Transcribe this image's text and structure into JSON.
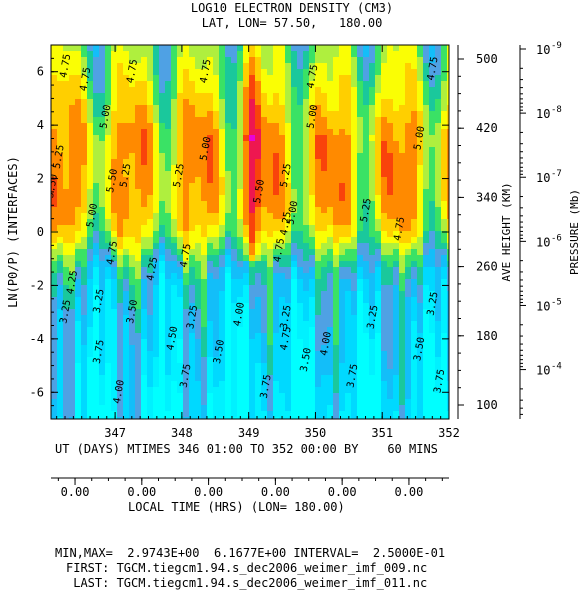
{
  "header": {
    "title": "LOG10 ELECTRON DENSITY (CM3)",
    "subtitle": "LAT, LON= 57.50,   180.00"
  },
  "axes": {
    "left_label": "LN(P0/P) (INTERFACES)",
    "height_label": "AVE HEIGHT (KM)",
    "pressure_label": "PRESSURE (Mb)",
    "x_label": "UT (DAYS) MTIMES 346 01:00 TO 352 00:00 BY    60 MINS",
    "local_time_label": "LOCAL TIME (HRS) (LON= 180.00)",
    "y_ticks": [
      "6",
      "4",
      "2",
      "0",
      "-2",
      "-4",
      "-6"
    ],
    "x_ticks": [
      "347",
      "348",
      "349",
      "350",
      "351",
      "352"
    ],
    "height_ticks": [
      "500",
      "420",
      "340",
      "260",
      "180",
      "100"
    ],
    "pressure_ticks": [
      {
        "base": "10",
        "exp": "-9"
      },
      {
        "base": "10",
        "exp": "-8"
      },
      {
        "base": "10",
        "exp": "-7"
      },
      {
        "base": "10",
        "exp": "-6"
      },
      {
        "base": "10",
        "exp": "-5"
      },
      {
        "base": "10",
        "exp": "-4"
      }
    ],
    "local_time_ticks": [
      "0.00",
      "0.00",
      "0.00",
      "0.00",
      "0.00",
      "0.00"
    ]
  },
  "footer": {
    "minmax": "MIN,MAX=  2.9743E+00  6.1677E+00 INTERVAL=  2.5000E-01",
    "first": "FIRST: TGCM.tiegcm1.94.s_dec2006_weimer_imf_009.nc",
    "last": " LAST: TGCM.tiegcm1.94.s_dec2006_weimer_imf_011.nc"
  },
  "chart_data": {
    "type": "heatmap",
    "title": "LOG10 ELECTRON DENSITY (CM3)",
    "subtitle": "LAT, LON= 57.50,   180.00",
    "xlabel": "UT (DAYS) MTIMES 346 01:00 TO 352 00:00 BY    60 MINS",
    "ylabel": "LN(P0/P) (INTERFACES)",
    "xlim": [
      346.04,
      352.0
    ],
    "ylim": [
      -7,
      7
    ],
    "min": 2.9743,
    "max": 6.1677,
    "interval": 0.25,
    "contour_labels": [
      {
        "x": 346.3,
        "y": 6.2,
        "value": "4.75"
      },
      {
        "x": 346.6,
        "y": 5.7,
        "value": "4.75"
      },
      {
        "x": 347.3,
        "y": 6.0,
        "value": "4.75"
      },
      {
        "x": 348.4,
        "y": 6.0,
        "value": "4.75"
      },
      {
        "x": 350.0,
        "y": 5.8,
        "value": "4.75"
      },
      {
        "x": 351.8,
        "y": 6.1,
        "value": "4.75"
      },
      {
        "x": 346.9,
        "y": 4.3,
        "value": "5.00"
      },
      {
        "x": 348.4,
        "y": 3.1,
        "value": "5.00"
      },
      {
        "x": 350.0,
        "y": 4.3,
        "value": "5.00"
      },
      {
        "x": 351.6,
        "y": 3.5,
        "value": "5.00"
      },
      {
        "x": 346.2,
        "y": 2.8,
        "value": "5.25"
      },
      {
        "x": 347.2,
        "y": 2.1,
        "value": "5.25"
      },
      {
        "x": 348.0,
        "y": 2.1,
        "value": "5.25"
      },
      {
        "x": 349.6,
        "y": 2.1,
        "value": "5.25"
      },
      {
        "x": 350.8,
        "y": 0.8,
        "value": "5.25"
      },
      {
        "x": 346.1,
        "y": 1.7,
        "value": "5.50"
      },
      {
        "x": 347.0,
        "y": 1.9,
        "value": "5.50"
      },
      {
        "x": 349.2,
        "y": 1.5,
        "value": "5.50"
      },
      {
        "x": 346.7,
        "y": 0.6,
        "value": "5.00"
      },
      {
        "x": 349.7,
        "y": 0.7,
        "value": "5.00"
      },
      {
        "x": 347.0,
        "y": -0.8,
        "value": "4.75"
      },
      {
        "x": 348.1,
        "y": -0.9,
        "value": "4.75"
      },
      {
        "x": 349.5,
        "y": -0.7,
        "value": "4.75"
      },
      {
        "x": 351.3,
        "y": 0.1,
        "value": "4.75"
      },
      {
        "x": 346.4,
        "y": -1.9,
        "value": "4.25"
      },
      {
        "x": 347.6,
        "y": -1.4,
        "value": "4.25"
      },
      {
        "x": 349.6,
        "y": 0.3,
        "value": "4.25"
      },
      {
        "x": 346.3,
        "y": -3.0,
        "value": "3.25"
      },
      {
        "x": 346.8,
        "y": -2.6,
        "value": "3.25"
      },
      {
        "x": 348.2,
        "y": -3.2,
        "value": "3.25"
      },
      {
        "x": 349.6,
        "y": -3.2,
        "value": "3.25"
      },
      {
        "x": 350.9,
        "y": -3.2,
        "value": "3.25"
      },
      {
        "x": 351.8,
        "y": -2.7,
        "value": "3.25"
      },
      {
        "x": 347.3,
        "y": -3.0,
        "value": "3.50"
      },
      {
        "x": 348.6,
        "y": -4.5,
        "value": "3.50"
      },
      {
        "x": 349.9,
        "y": -4.8,
        "value": "3.50"
      },
      {
        "x": 351.6,
        "y": -4.4,
        "value": "3.50"
      },
      {
        "x": 347.9,
        "y": -4.0,
        "value": "4.50"
      },
      {
        "x": 350.2,
        "y": -4.2,
        "value": "4.00"
      },
      {
        "x": 348.9,
        "y": -3.1,
        "value": "4.00"
      },
      {
        "x": 347.1,
        "y": -6.0,
        "value": "4.00"
      },
      {
        "x": 346.8,
        "y": -4.5,
        "value": "3.75"
      },
      {
        "x": 348.1,
        "y": -5.4,
        "value": "3.75"
      },
      {
        "x": 349.3,
        "y": -5.8,
        "value": "3.75"
      },
      {
        "x": 350.6,
        "y": -5.4,
        "value": "3.75"
      },
      {
        "x": 351.9,
        "y": -5.6,
        "value": "3.75"
      },
      {
        "x": 349.6,
        "y": -4.0,
        "value": "4.75"
      }
    ],
    "right_axis_height_km": [
      500,
      420,
      340,
      260,
      180,
      100
    ],
    "right_axis_pressure_mb": [
      "1e-9",
      "1e-8",
      "1e-7",
      "1e-6",
      "1e-5",
      "1e-4"
    ]
  }
}
